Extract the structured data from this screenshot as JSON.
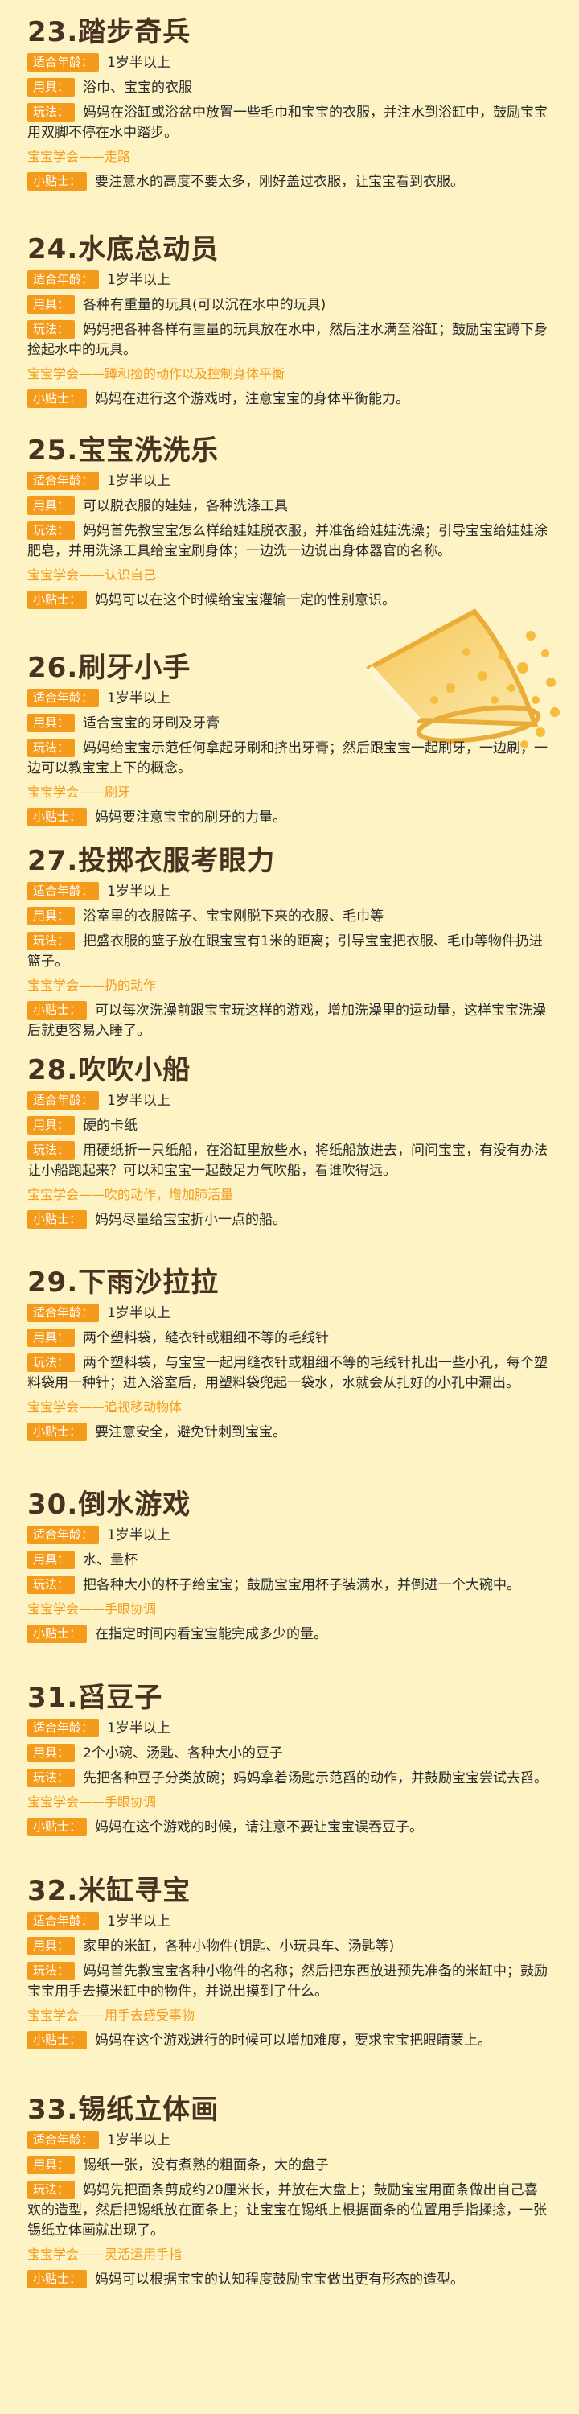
{
  "sections": [
    {
      "title": "23.踏步奇兵",
      "age_label": "适合年龄：",
      "age": "1岁半以上",
      "tools_label": "用具：",
      "tools": "浴巾、宝宝的衣服",
      "play_label": "玩法：",
      "play": "妈妈在浴缸或浴盆中放置一些毛巾和宝宝的衣服，并注水到浴缸中，鼓励宝宝用双脚不停在水中踏步。",
      "learn": "宝宝学会——走路",
      "tip_label": "小贴士：",
      "tip": "要注意水的高度不要太多，刚好盖过衣服，让宝宝看到衣服。"
    },
    {
      "title": "24.水底总动员",
      "age_label": "适合年龄：",
      "age": "1岁半以上",
      "tools_label": "用具：",
      "tools": "各种有重量的玩具(可以沉在水中的玩具)",
      "play_label": "玩法：",
      "play": "妈妈把各种各样有重量的玩具放在水中，然后注水满至浴缸；鼓励宝宝蹲下身捡起水中的玩具。",
      "learn": "宝宝学会——蹲和捡的动作以及控制身体平衡",
      "tip_label": "小贴士：",
      "tip": "妈妈在进行这个游戏时，注意宝宝的身体平衡能力。"
    },
    {
      "title": "25.宝宝洗洗乐",
      "age_label": "适合年龄：",
      "age": "1岁半以上",
      "tools_label": "用具：",
      "tools": "可以脱衣服的娃娃，各种洗涤工具",
      "play_label": "玩法：",
      "play": "妈妈首先教宝宝怎么样给娃娃脱衣服，并准备给娃娃洗澡；引导宝宝给娃娃涂肥皂，并用洗涤工具给宝宝刷身体；一边洗一边说出身体器官的名称。",
      "learn": "宝宝学会——认识自己",
      "tip_label": "小贴士：",
      "tip": "妈妈可以在这个时候给宝宝灌输一定的性别意识。"
    },
    {
      "title": "26.刷牙小手",
      "age_label": "适合年龄：",
      "age": "1岁半以上",
      "tools_label": "用具：",
      "tools": "适合宝宝的牙刷及牙膏",
      "play_label": "玩法：",
      "play": "妈妈给宝宝示范任何拿起牙刷和挤出牙膏；然后跟宝宝一起刷牙，一边刷，一边可以教宝宝上下的概念。",
      "learn": "宝宝学会——刷牙",
      "tip_label": "小贴士：",
      "tip": "妈妈要注意宝宝的刷牙的力量。"
    },
    {
      "title": "27.投掷衣服考眼力",
      "age_label": "适合年龄：",
      "age": "1岁半以上",
      "tools_label": "用具：",
      "tools": "浴室里的衣服篮子、宝宝刚脱下来的衣服、毛巾等",
      "play_label": "玩法：",
      "play": "把盛衣服的篮子放在跟宝宝有1米的距离；引导宝宝把衣服、毛巾等物件扔进篮子。",
      "learn": "宝宝学会——扔的动作",
      "tip_label": "小贴士：",
      "tip": "可以每次洗澡前跟宝宝玩这样的游戏，增加洗澡里的运动量，这样宝宝洗澡后就更容易入睡了。"
    },
    {
      "title": "28.吹吹小船",
      "age_label": "适合年龄：",
      "age": "1岁半以上",
      "tools_label": "用具：",
      "tools": "硬的卡纸",
      "play_label": "玩法：",
      "play": "用硬纸折一只纸船，在浴缸里放些水，将纸船放进去，问问宝宝，有没有办法让小船跑起来？可以和宝宝一起鼓足力气吹船，看谁吹得远。",
      "learn": "宝宝学会——吹的动作，增加肺活量",
      "tip_label": "小贴士：",
      "tip": "妈妈尽量给宝宝折小一点的船。"
    },
    {
      "title": "29.下雨沙拉拉",
      "age_label": "适合年龄：",
      "age": "1岁半以上",
      "tools_label": "用具：",
      "tools": "两个塑料袋，缝衣针或粗细不等的毛线针",
      "play_label": "玩法：",
      "play": "两个塑料袋，与宝宝一起用缝衣针或粗细不等的毛线针扎出一些小孔，每个塑料袋用一种针；进入浴室后，用塑料袋兜起一袋水，水就会从扎好的小孔中漏出。",
      "learn": "宝宝学会——追视移动物体",
      "tip_label": "小贴士：",
      "tip": "要注意安全，避免针刺到宝宝。"
    },
    {
      "title": "30.倒水游戏",
      "age_label": "适合年龄：",
      "age": "1岁半以上",
      "tools_label": "用具：",
      "tools": "水、量杯",
      "play_label": "玩法：",
      "play": "把各种大小的杯子给宝宝；鼓励宝宝用杯子装满水，并倒进一个大碗中。",
      "learn": "宝宝学会——手眼协调",
      "tip_label": "小贴士：",
      "tip": "在指定时间内看宝宝能完成多少的量。"
    },
    {
      "title": "31.舀豆子",
      "age_label": "适合年龄：",
      "age": "1岁半以上",
      "tools_label": "用具：",
      "tools": "2个小碗、汤匙、各种大小的豆子",
      "play_label": "玩法：",
      "play": "先把各种豆子分类放碗；妈妈拿着汤匙示范舀的动作，并鼓励宝宝尝试去舀。",
      "learn": "宝宝学会——手眼协调",
      "tip_label": "小贴士：",
      "tip": "妈妈在这个游戏的时候，请注意不要让宝宝误吞豆子。"
    },
    {
      "title": "32.米缸寻宝",
      "age_label": "适合年龄：",
      "age": "1岁半以上",
      "tools_label": "用具：",
      "tools": "家里的米缸，各种小物件(钥匙、小玩具车、汤匙等)",
      "play_label": "玩法：",
      "play": "妈妈首先教宝宝各种小物件的名称；然后把东西放进预先准备的米缸中；鼓励宝宝用手去摸米缸中的物件，并说出摸到了什么。",
      "learn": "宝宝学会——用手去感受事物",
      "tip_label": "小贴士：",
      "tip": "妈妈在这个游戏进行的时候可以增加难度，要求宝宝把眼睛蒙上。"
    },
    {
      "title": "33.锡纸立体画",
      "age_label": "适合年龄：",
      "age": "1岁半以上",
      "tools_label": "用具：",
      "tools": "锡纸一张，没有煮熟的粗面条，大的盘子",
      "play_label": "玩法：",
      "play": "妈妈先把面条剪成约20厘米长，并放在大盘上；鼓励宝宝用面条做出自己喜欢的造型，然后把锡纸放在面条上；让宝宝在锡纸上根据面条的位置用手指揉捻，一张锡纸立体画就出现了。",
      "learn": "宝宝学会——灵活运用手指",
      "tip_label": "小贴士：",
      "tip": "妈妈可以根据宝宝的认知程度鼓励宝宝做出更有形态的造型。"
    }
  ]
}
